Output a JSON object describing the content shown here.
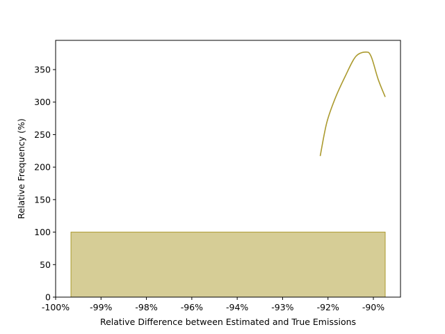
{
  "chart_data": {
    "type": "bar",
    "xlabel": "Relative Difference between Estimated and True Emissions",
    "ylabel": "Relative Frequency (%)",
    "x_tick_labels": [
      "-100%",
      "-99%",
      "-98%",
      "-96%",
      "-94%",
      "-93%",
      "-92%",
      "-90%"
    ],
    "xlim": [
      0,
      1
    ],
    "ylim": [
      0,
      395
    ],
    "y_ticks": [
      0,
      50,
      100,
      150,
      200,
      250,
      300,
      350
    ],
    "grid": false,
    "colors": {
      "fill": "#d6cd96",
      "edge": "#ab9a2e",
      "line": "#ab9a2e"
    },
    "series": [
      {
        "type": "bar",
        "bins": [
          {
            "x0": 0.0445,
            "x1": 0.9556,
            "value": 100
          }
        ]
      },
      {
        "type": "line",
        "x": [
          0.7672,
          0.786,
          0.81,
          0.84,
          0.87,
          0.9,
          0.915,
          0.9353,
          0.9556
        ],
        "y": [
          217,
          268,
          305,
          340,
          370,
          377,
          370,
          335,
          308
        ]
      }
    ]
  }
}
